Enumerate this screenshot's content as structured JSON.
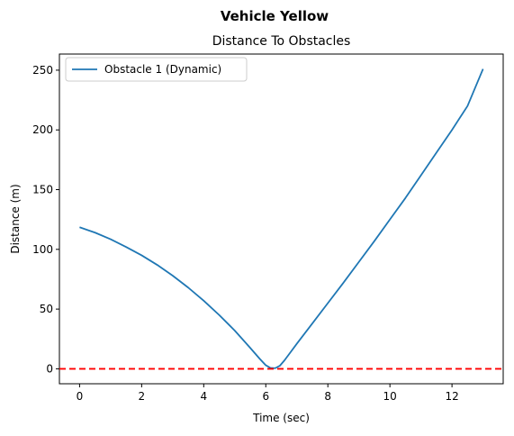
{
  "chart_data": {
    "type": "line",
    "suptitle": "Vehicle Yellow",
    "title": "Distance To Obstacles",
    "xlabel": "Time (sec)",
    "ylabel": "Distance (m)",
    "xlim": [
      -0.65,
      13.65
    ],
    "ylim": [
      -12.5,
      263.5
    ],
    "xticks": [
      0,
      2,
      4,
      6,
      8,
      10,
      12
    ],
    "yticks": [
      0,
      50,
      100,
      150,
      200,
      250
    ],
    "grid": false,
    "legend_position": "upper-left",
    "series": [
      {
        "name": "Obstacle 1 (Dynamic)",
        "color": "#1f77b4",
        "style": "solid",
        "x": [
          0,
          0.5,
          1,
          1.5,
          2,
          2.5,
          3,
          3.5,
          4,
          4.5,
          5,
          5.5,
          5.8,
          6.0,
          6.15,
          6.3,
          6.45,
          6.6,
          6.8,
          7.0,
          7.5,
          8,
          8.5,
          9,
          9.5,
          10,
          10.5,
          11,
          11.5,
          12,
          12.5,
          13
        ],
        "values": [
          118.5,
          114,
          108.5,
          102,
          95,
          87,
          78,
          68,
          57,
          45,
          32,
          17.5,
          8.5,
          3,
          0.8,
          0.5,
          2.5,
          7,
          14,
          21,
          38,
          55,
          72,
          89.5,
          107,
          125,
          143,
          162,
          181,
          200,
          220,
          251
        ]
      },
      {
        "name": "Zero line",
        "color": "#ff0000",
        "style": "dashed",
        "constant": 0
      }
    ]
  }
}
